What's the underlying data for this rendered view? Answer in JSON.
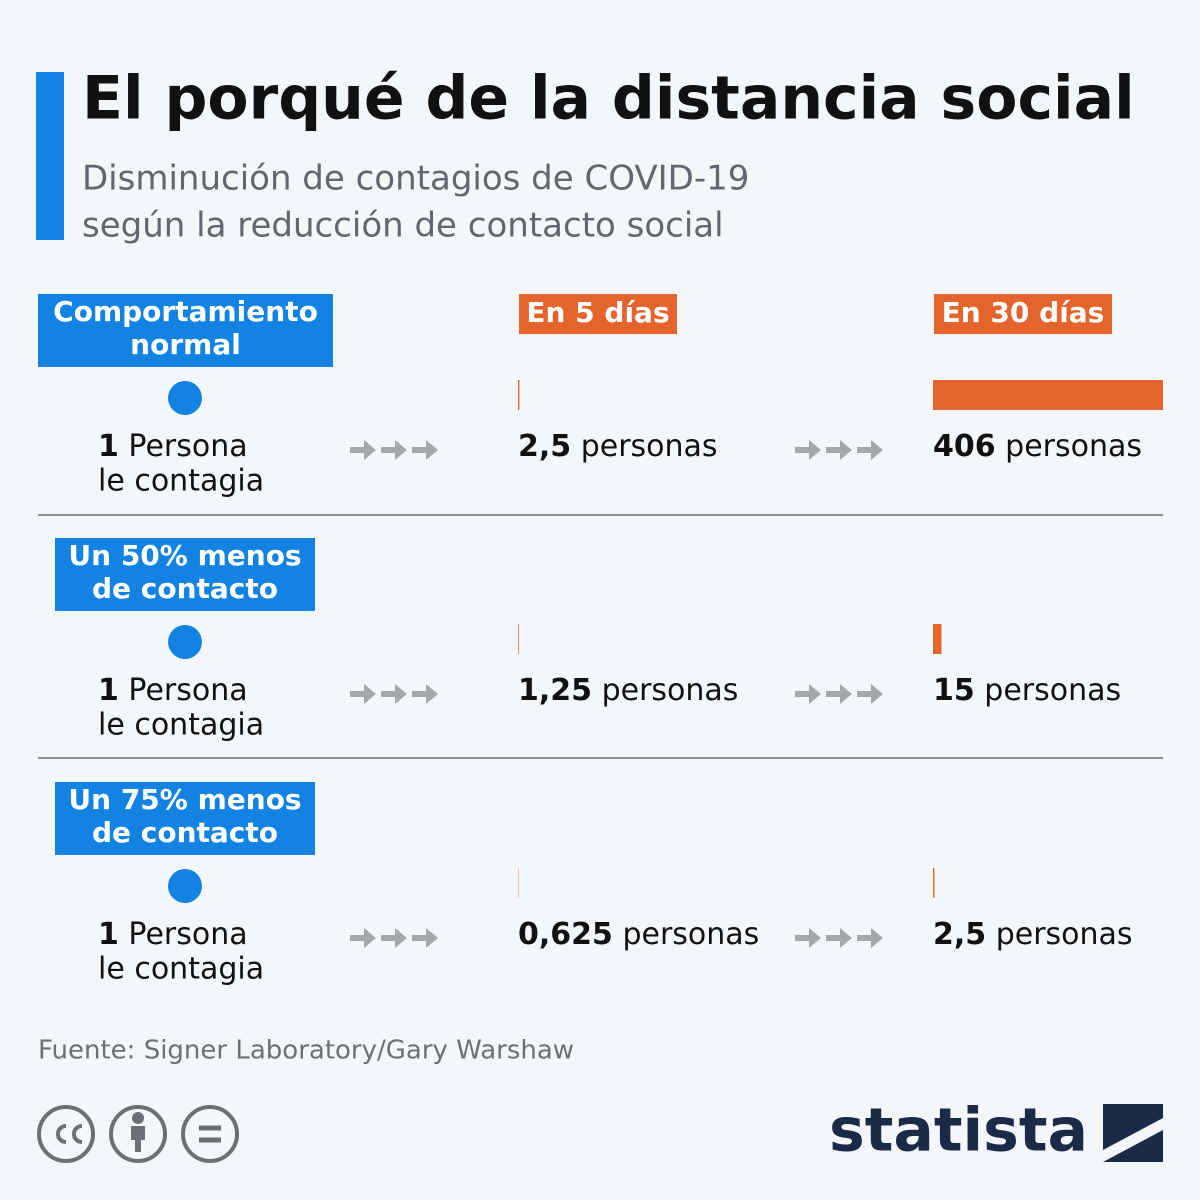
{
  "header": {
    "title": "El porqué de la distancia social",
    "subtitle_lines": [
      "Disminución de contagios de COVID-19",
      "según la reducción de contacto social"
    ]
  },
  "columns": [
    "En 5 días",
    "En 30 días"
  ],
  "unit": "personas",
  "xlim": [
    0,
    406
  ],
  "rows": [
    {
      "label_lines": [
        "Comportamiento",
        "normal"
      ],
      "origin": {
        "number": 1,
        "lines": [
          "Persona",
          "le contagia"
        ]
      },
      "values": [
        {
          "value": 2.5,
          "label": "2,5"
        },
        406
      ]
    },
    {
      "label_lines": [
        "Un 50% menos",
        "de contacto"
      ],
      "origin": {
        "number": 1,
        "lines": [
          "Persona",
          "le contagia"
        ]
      },
      "values": [
        {
          "value": 1.25,
          "label": "1,25"
        },
        15
      ]
    },
    {
      "label_lines": [
        "Un 75% menos",
        "de contacto"
      ],
      "origin": {
        "number": 1,
        "lines": [
          "Persona",
          "le contagia"
        ]
      },
      "values": [
        {
          "value": 0.625,
          "label": "0,625"
        },
        {
          "value": 2.5,
          "label": "2,5"
        }
      ]
    }
  ],
  "source": "Fuente: Signer Laboratory/Gary Warshaw",
  "brand": "statista"
}
